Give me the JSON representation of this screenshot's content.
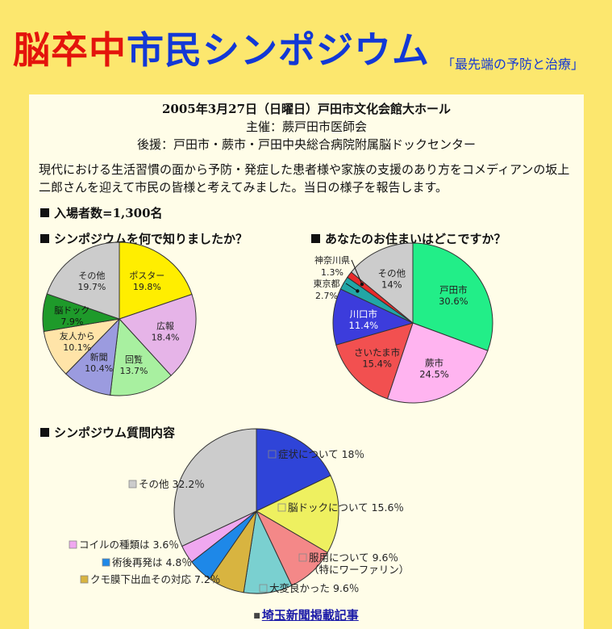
{
  "header": {
    "title_red": "脳卒中",
    "title_blue": "市民シンポジウム",
    "subtitle": "「最先端の予防と治療」"
  },
  "event": {
    "date_venue": "2005年3月27日（日曜日）戸田市文化会館大ホール",
    "organizer": "主催：蕨戸田市医師会",
    "sponsors": "後援：戸田市・蕨市・戸田中央総合病院附属脳ドックセンター"
  },
  "intro": "現代における生活習慣の面から予防・発症した患者様や家族の支援のあり方をコメディアンの坂上二郎さんを迎えて市民の皆様と考えてみました。当日の様子を報告します。",
  "attendance": "入場者数=1,300名",
  "link": {
    "label": "埼玉新聞掲載記事"
  },
  "chart_data": [
    {
      "type": "pie",
      "title": "シンポジウムを何で知りましたか？",
      "slices": [
        {
          "label": "ポスター",
          "value": 19.8,
          "display": "19.8%",
          "color": "#ffee00"
        },
        {
          "label": "広報",
          "value": 18.4,
          "display": "18.4%",
          "color": "#e6b4e8"
        },
        {
          "label": "回覧",
          "value": 13.7,
          "display": "13.7%",
          "color": "#a8f0a0"
        },
        {
          "label": "新聞",
          "value": 10.4,
          "display": "10.4%",
          "color": "#9b9bdf"
        },
        {
          "label": "友人から",
          "value": 10.1,
          "display": "10.1%",
          "color": "#ffe4a8"
        },
        {
          "label": "脳ドック",
          "value": 7.9,
          "display": "7.9%",
          "color": "#1e9a2a"
        },
        {
          "label": "その他",
          "value": 19.7,
          "display": "19.7%",
          "color": "#cccccc"
        }
      ]
    },
    {
      "type": "pie",
      "title": "あなたのお住まいはどこですか？",
      "slices": [
        {
          "label": "戸田市",
          "value": 30.6,
          "display": "30.6%",
          "color": "#22ee88"
        },
        {
          "label": "蕨市",
          "value": 24.5,
          "display": "24.5%",
          "color": "#ffb4f0"
        },
        {
          "label": "さいたま市",
          "value": 15.4,
          "display": "15.4%",
          "color": "#f25050"
        },
        {
          "label": "川口市",
          "value": 11.4,
          "display": "11.4%",
          "color": "#3c3cdc"
        },
        {
          "label": "東京都",
          "value": 2.7,
          "display": "2.7%",
          "color": "#22a6a6"
        },
        {
          "label": "神奈川県",
          "value": 1.3,
          "display": "1.3%",
          "color": "#e82a2a"
        },
        {
          "label": "その他",
          "value": 14.0,
          "display": "14%",
          "color": "#cccccc"
        }
      ]
    },
    {
      "type": "pie",
      "title": "シンポジウム質問内容",
      "slices": [
        {
          "label": "症状について",
          "value": 18,
          "display": "18％",
          "color": "#2f44d8"
        },
        {
          "label": "脳ドックについて",
          "value": 15.6,
          "display": "15.6％",
          "color": "#eef060"
        },
        {
          "label": "服用について",
          "label2": "（特にワーファリン）",
          "value": 9.6,
          "display": "9.6％",
          "color": "#f48888"
        },
        {
          "label": "大変良かった",
          "value": 9.6,
          "display": "9.6％",
          "color": "#7ad0d0"
        },
        {
          "label": "クモ膜下出血その対応",
          "value": 7.2,
          "display": "7.2％",
          "color": "#d8b440"
        },
        {
          "label": "術後再発は",
          "value": 4.8,
          "display": "4.8％",
          "color": "#1e88e8"
        },
        {
          "label": "コイルの種類は",
          "value": 3.6,
          "display": "3.6％",
          "color": "#f0a8f0"
        },
        {
          "label": "その他",
          "value": 32.2,
          "display": "32.2％",
          "color": "#cccccc"
        }
      ]
    }
  ]
}
